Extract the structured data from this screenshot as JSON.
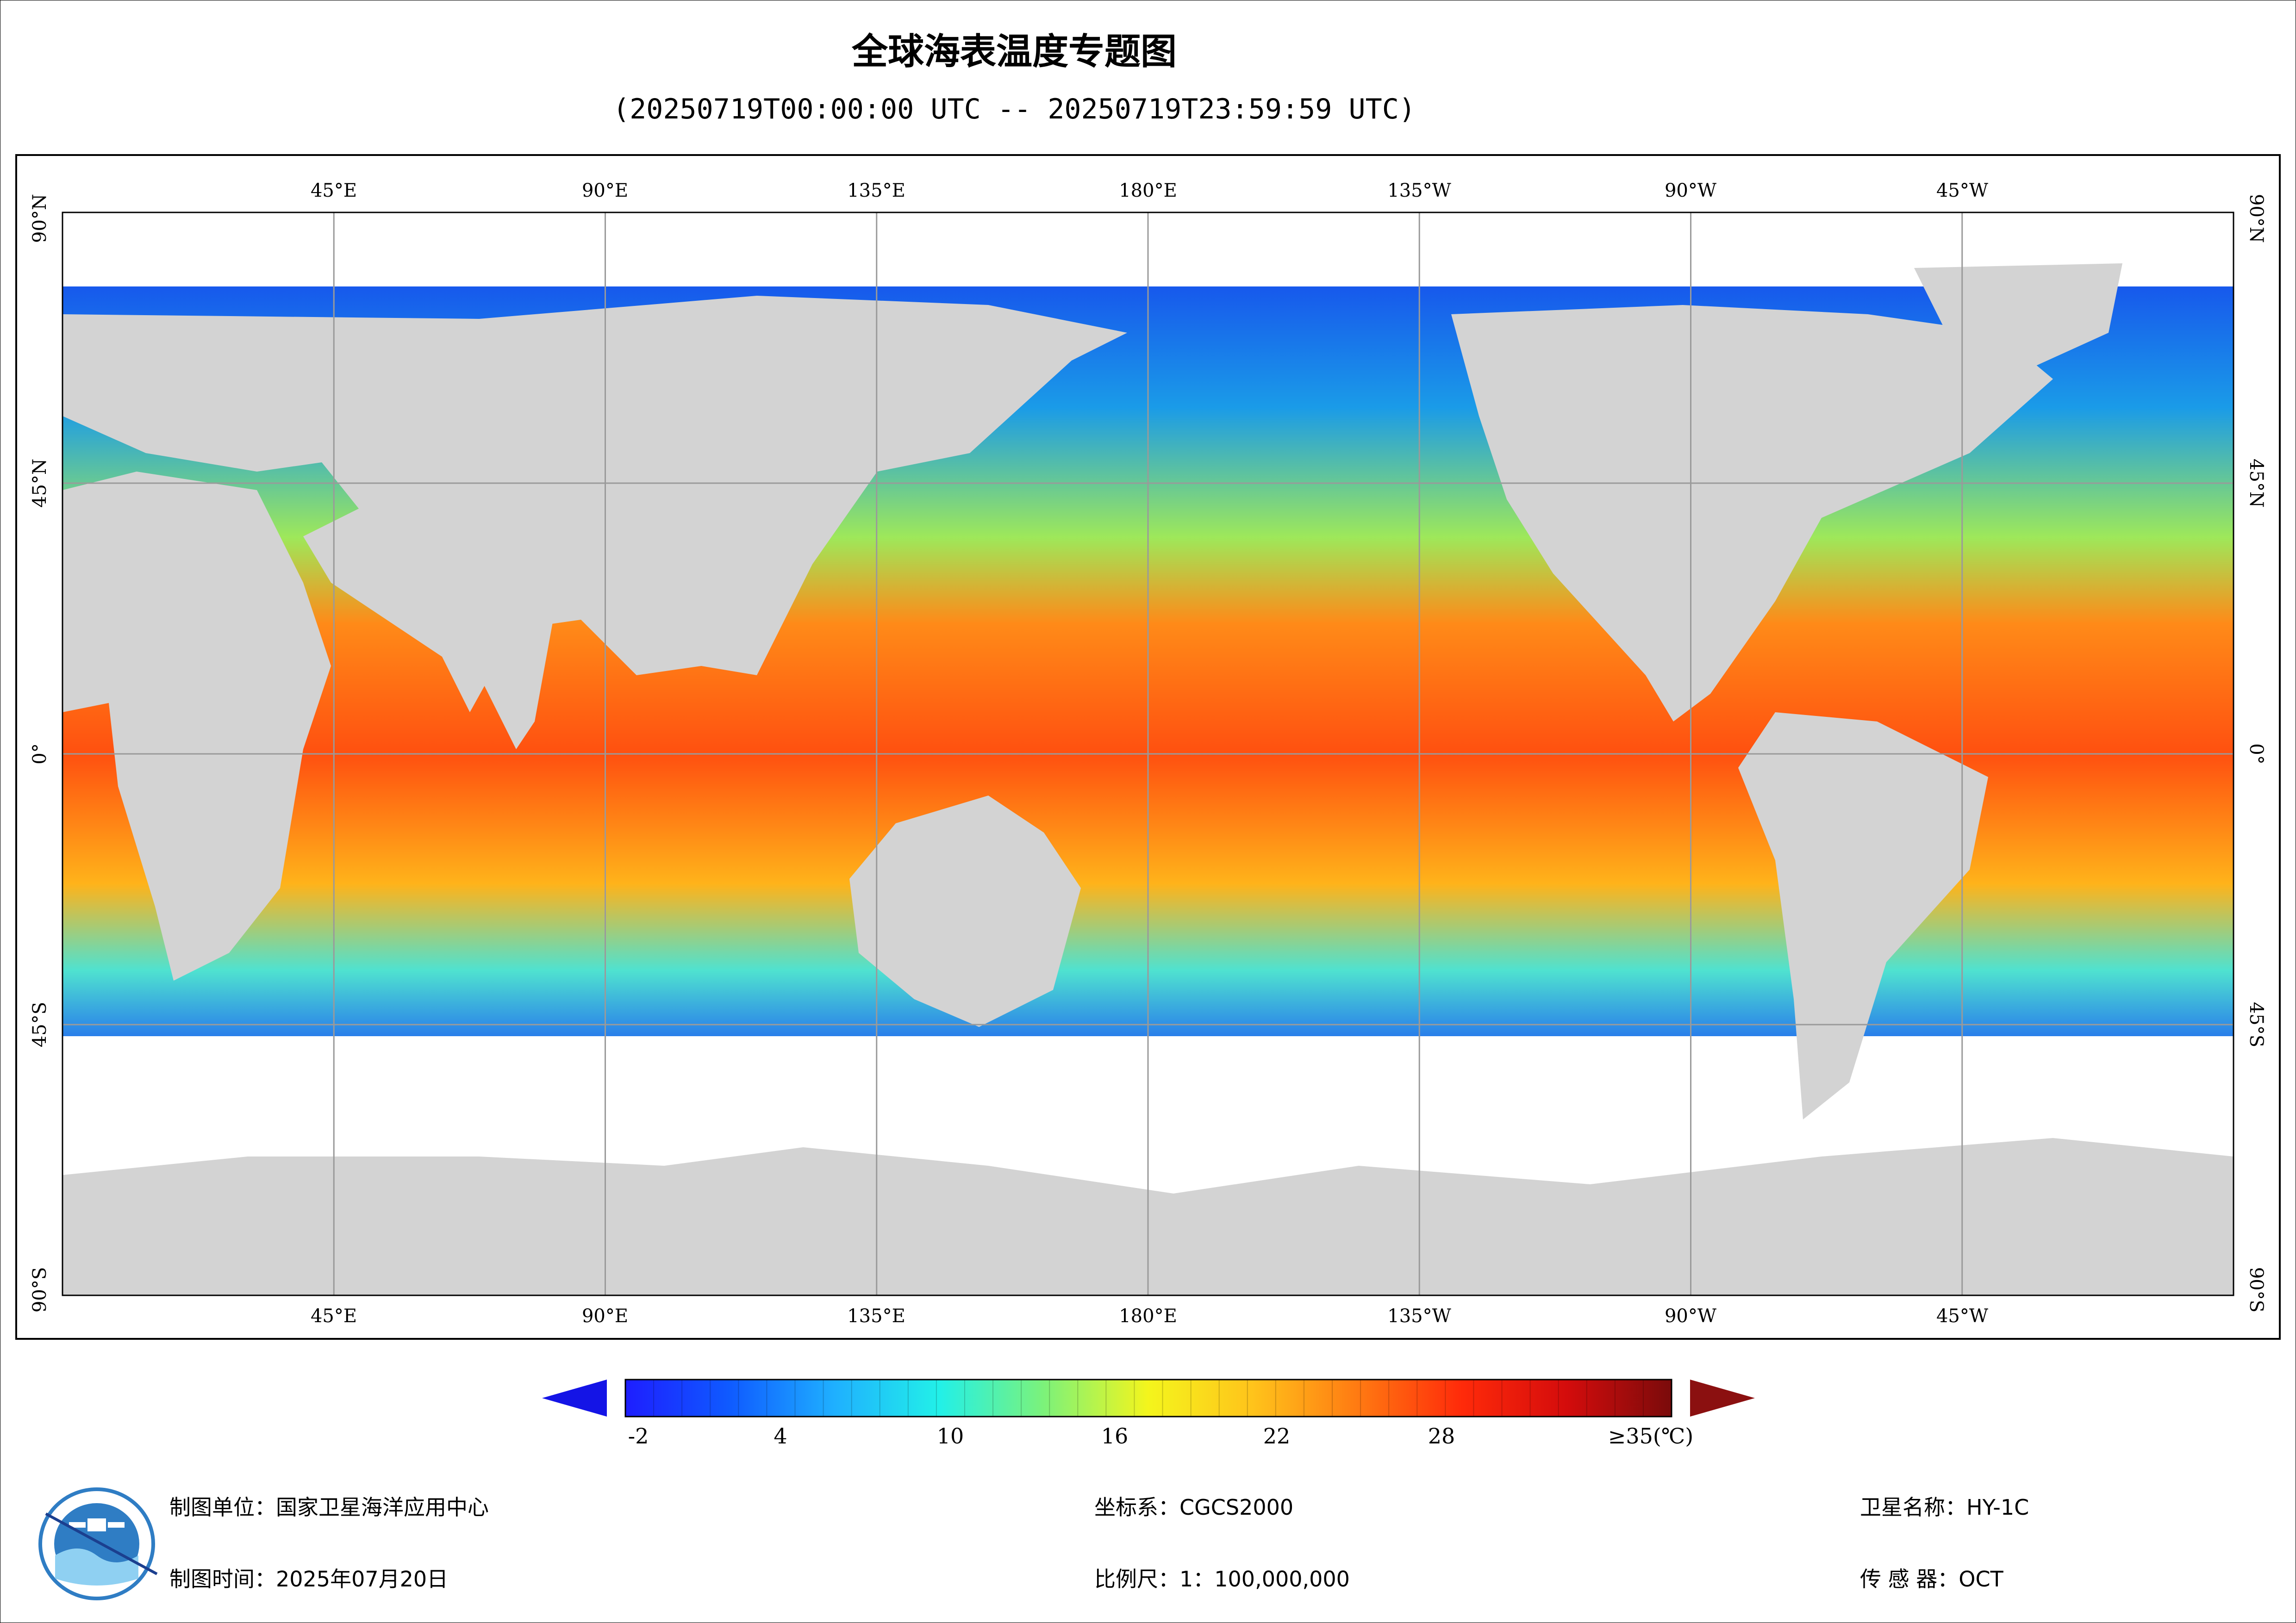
{
  "header": {
    "title": "全球海表温度专题图",
    "subtitle": "(20250719T00:00:00 UTC -- 20250719T23:59:59 UTC)"
  },
  "map": {
    "top_labels": [
      "45°E",
      "90°E",
      "135°E",
      "180°E",
      "135°W",
      "90°W",
      "45°W"
    ],
    "bottom_labels": [
      "45°E",
      "90°E",
      "135°E",
      "180°E",
      "135°W",
      "90°W",
      "45°W"
    ],
    "left_labels": [
      "90°N",
      "45°N",
      "0°",
      "45°S",
      "90°S"
    ],
    "right_labels": [
      "90°N",
      "45°N",
      "0°",
      "45°S",
      "90°S"
    ]
  },
  "colorbar": {
    "labels": [
      "-2",
      "4",
      "10",
      "16",
      "22",
      "28",
      "≥35(℃)"
    ],
    "colors": {
      "under": "#1414e6",
      "over": "#8b1010",
      "stops": [
        "#1e1eff",
        "#0f5bff",
        "#1fb0ff",
        "#22f0e8",
        "#7cf27a",
        "#f4f51c",
        "#ffc31b",
        "#ff7a12",
        "#ff2a0a",
        "#d40c0c",
        "#7a0b0b"
      ]
    },
    "land_color": "#d3d3d3"
  },
  "footer": {
    "unit": "制图单位：国家卫星海洋应用中心",
    "time": "制图时间：2025年07月20日",
    "crs": "坐标系：CGCS2000",
    "scale": "比例尺：1：100,000,000",
    "satellite": "卫星名称：HY-1C",
    "sensor": "传 感 器：OCT"
  }
}
